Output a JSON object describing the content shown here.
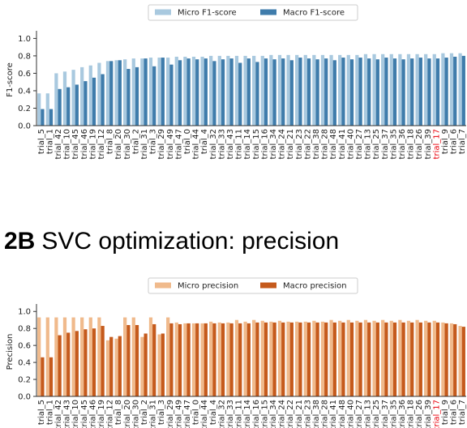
{
  "chart_data": [
    {
      "type": "bar",
      "ylabel": "F1-score",
      "legend": "upper center",
      "highlight_category": "trial_17",
      "highlight_color": "#e8000b",
      "ylim": [
        0,
        1.05
      ],
      "yticks": [
        {
          "value": 0,
          "label": "0.0"
        },
        0.2,
        0.4,
        0.6,
        0.8,
        {
          "value": 1,
          "label": "1.0"
        }
      ],
      "categories": [
        "trial_5",
        "trial_1",
        "trial_42",
        "trial_10",
        "trial_45",
        "trial_46",
        "trial_19",
        "trial_12",
        "trial_8",
        "trial_20",
        "trial_30",
        "trial_2",
        "trial_31",
        "trial_3",
        "trial_29",
        "trial_49",
        "trial_47",
        "trial_0",
        "trial_44",
        "trial_4",
        "trial_32",
        "trial_33",
        "trial_43",
        "trial_11",
        "trial_14",
        "trial_15",
        "trial_16",
        "trial_34",
        "trial_24",
        "trial_21",
        "trial_23",
        "trial_22",
        "trial_38",
        "trial_28",
        "trial_48",
        "trial_41",
        "trial_40",
        "trial_27",
        "trial_13",
        "trial_25",
        "trial_37",
        "trial_35",
        "trial_36",
        "trial_18",
        "trial_26",
        "trial_39",
        "trial_17",
        "trial_9",
        "trial_6",
        "trial_7"
      ],
      "series": [
        {
          "name": "Micro F1-score",
          "color": "#a9c9df",
          "values": [
            0.37,
            0.37,
            0.6,
            0.62,
            0.64,
            0.67,
            0.69,
            0.72,
            0.74,
            0.75,
            0.76,
            0.77,
            0.77,
            0.78,
            0.78,
            0.78,
            0.79,
            0.79,
            0.79,
            0.79,
            0.8,
            0.8,
            0.8,
            0.8,
            0.8,
            0.8,
            0.8,
            0.81,
            0.81,
            0.81,
            0.81,
            0.81,
            0.81,
            0.81,
            0.81,
            0.81,
            0.81,
            0.81,
            0.82,
            0.82,
            0.82,
            0.82,
            0.82,
            0.82,
            0.82,
            0.82,
            0.82,
            0.83,
            0.83,
            0.83
          ]
        },
        {
          "name": "Macro F1-score",
          "color": "#3f7cab",
          "values": [
            0.19,
            0.19,
            0.42,
            0.44,
            0.47,
            0.51,
            0.55,
            0.59,
            0.74,
            0.75,
            0.65,
            0.67,
            0.77,
            0.68,
            0.78,
            0.7,
            0.75,
            0.77,
            0.76,
            0.77,
            0.74,
            0.76,
            0.77,
            0.72,
            0.77,
            0.73,
            0.77,
            0.76,
            0.77,
            0.75,
            0.78,
            0.77,
            0.76,
            0.77,
            0.75,
            0.78,
            0.76,
            0.78,
            0.77,
            0.76,
            0.78,
            0.77,
            0.76,
            0.77,
            0.78,
            0.77,
            0.77,
            0.78,
            0.79,
            0.8
          ]
        }
      ]
    },
    {
      "type": "bar",
      "title_label": "2B",
      "title": "SVC optimization: precision",
      "ylabel": "Precision",
      "legend": "upper center",
      "highlight_category": "trial_17",
      "highlight_color": "#e8000b",
      "ylim": [
        0,
        1.05
      ],
      "yticks": [
        {
          "value": 0,
          "label": "0.0"
        },
        0.2,
        0.4,
        0.6,
        0.8,
        {
          "value": 1,
          "label": "1.0"
        }
      ],
      "categories": [
        "trial_5",
        "trial_1",
        "trial_42",
        "trial_43",
        "trial_10",
        "trial_45",
        "trial_46",
        "trial_19",
        "trial_12",
        "trial_8",
        "trial_20",
        "trial_30",
        "trial_2",
        "trial_31",
        "trial_3",
        "trial_29",
        "trial_49",
        "trial_47",
        "trial_0",
        "trial_44",
        "trial_4",
        "trial_32",
        "trial_33",
        "trial_11",
        "trial_14",
        "trial_16",
        "trial_15",
        "trial_34",
        "trial_24",
        "trial_22",
        "trial_21",
        "trial_23",
        "trial_38",
        "trial_28",
        "trial_41",
        "trial_48",
        "trial_40",
        "trial_27",
        "trial_13",
        "trial_25",
        "trial_37",
        "trial_35",
        "trial_36",
        "trial_18",
        "trial_26",
        "trial_39",
        "trial_17",
        "trial_9",
        "trial_6",
        "trial_7"
      ],
      "series": [
        {
          "name": "Micro precision",
          "color": "#f0ba8c",
          "values": [
            0.93,
            0.93,
            0.93,
            0.93,
            0.93,
            0.93,
            0.93,
            0.93,
            0.66,
            0.68,
            0.93,
            0.93,
            0.7,
            0.93,
            0.73,
            0.93,
            0.87,
            0.86,
            0.86,
            0.86,
            0.88,
            0.87,
            0.87,
            0.9,
            0.88,
            0.9,
            0.89,
            0.88,
            0.89,
            0.88,
            0.88,
            0.88,
            0.89,
            0.88,
            0.9,
            0.89,
            0.9,
            0.89,
            0.9,
            0.89,
            0.9,
            0.89,
            0.9,
            0.89,
            0.9,
            0.89,
            0.89,
            0.87,
            0.86,
            0.83
          ]
        },
        {
          "name": "Macro precision",
          "color": "#c55a1c",
          "values": [
            0.46,
            0.46,
            0.72,
            0.75,
            0.77,
            0.79,
            0.8,
            0.83,
            0.7,
            0.71,
            0.84,
            0.84,
            0.74,
            0.85,
            0.74,
            0.86,
            0.85,
            0.86,
            0.86,
            0.86,
            0.86,
            0.86,
            0.86,
            0.86,
            0.86,
            0.87,
            0.87,
            0.87,
            0.87,
            0.87,
            0.87,
            0.87,
            0.87,
            0.87,
            0.87,
            0.87,
            0.87,
            0.87,
            0.87,
            0.87,
            0.87,
            0.87,
            0.87,
            0.87,
            0.87,
            0.87,
            0.87,
            0.86,
            0.85,
            0.82
          ]
        }
      ]
    }
  ]
}
